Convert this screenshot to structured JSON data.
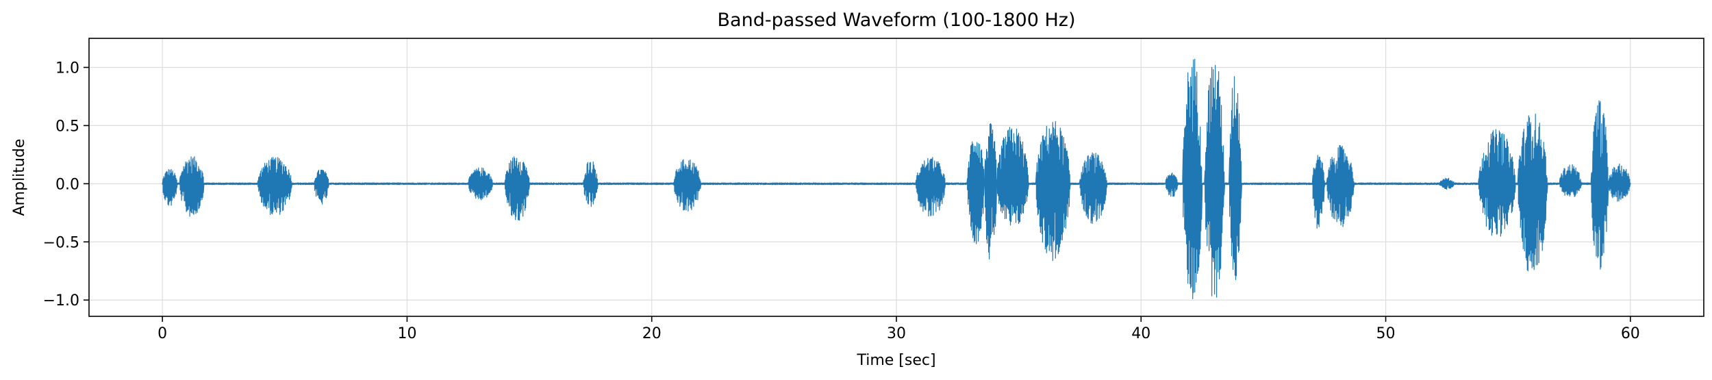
{
  "chart_data": {
    "type": "line",
    "title": "Band-passed Waveform (100-1800 Hz)",
    "xlabel": "Time [sec]",
    "ylabel": "Amplitude",
    "xlim": [
      -3,
      63
    ],
    "ylim": [
      -1.14,
      1.25
    ],
    "x_ticks": [
      0,
      10,
      20,
      30,
      40,
      50,
      60
    ],
    "x_tick_labels": [
      "0",
      "10",
      "20",
      "30",
      "40",
      "50",
      "60"
    ],
    "y_ticks": [
      -1.0,
      -0.5,
      0.0,
      0.5,
      1.0
    ],
    "y_tick_labels": [
      "−1.0",
      "−0.5",
      "0.0",
      "0.5",
      "1.0"
    ],
    "grid": true,
    "legend": "none",
    "color": "#1f77b4",
    "duration_sec": 60,
    "baseline_noise": 0.008,
    "bursts": [
      {
        "start": 0.0,
        "end": 0.6,
        "pos": 0.13,
        "neg": 0.2
      },
      {
        "start": 0.7,
        "end": 1.7,
        "pos": 0.24,
        "neg": 0.29
      },
      {
        "start": 3.9,
        "end": 5.3,
        "pos": 0.23,
        "neg": 0.28
      },
      {
        "start": 6.2,
        "end": 6.8,
        "pos": 0.13,
        "neg": 0.18
      },
      {
        "start": 12.5,
        "end": 13.5,
        "pos": 0.14,
        "neg": 0.14
      },
      {
        "start": 14.0,
        "end": 15.0,
        "pos": 0.25,
        "neg": 0.33
      },
      {
        "start": 17.2,
        "end": 17.8,
        "pos": 0.21,
        "neg": 0.2
      },
      {
        "start": 20.9,
        "end": 22.0,
        "pos": 0.22,
        "neg": 0.25
      },
      {
        "start": 30.8,
        "end": 32.0,
        "pos": 0.23,
        "neg": 0.3
      },
      {
        "start": 32.9,
        "end": 33.6,
        "pos": 0.45,
        "neg": 0.52
      },
      {
        "start": 33.6,
        "end": 34.1,
        "pos": 0.52,
        "neg": 0.68
      },
      {
        "start": 34.1,
        "end": 35.4,
        "pos": 0.5,
        "neg": 0.39
      },
      {
        "start": 35.7,
        "end": 37.1,
        "pos": 0.55,
        "neg": 0.67
      },
      {
        "start": 37.5,
        "end": 38.6,
        "pos": 0.27,
        "neg": 0.35
      },
      {
        "start": 41.0,
        "end": 41.5,
        "pos": 0.1,
        "neg": 0.12
      },
      {
        "start": 41.7,
        "end": 42.5,
        "pos": 1.13,
        "neg": 1.02
      },
      {
        "start": 42.6,
        "end": 43.4,
        "pos": 1.1,
        "neg": 1.01
      },
      {
        "start": 43.6,
        "end": 44.1,
        "pos": 0.97,
        "neg": 0.84
      },
      {
        "start": 47.0,
        "end": 47.5,
        "pos": 0.25,
        "neg": 0.4
      },
      {
        "start": 47.6,
        "end": 48.7,
        "pos": 0.33,
        "neg": 0.38
      },
      {
        "start": 52.2,
        "end": 52.8,
        "pos": 0.05,
        "neg": 0.05
      },
      {
        "start": 53.8,
        "end": 55.3,
        "pos": 0.47,
        "neg": 0.47
      },
      {
        "start": 55.4,
        "end": 56.6,
        "pos": 0.62,
        "neg": 0.82
      },
      {
        "start": 57.1,
        "end": 58.0,
        "pos": 0.17,
        "neg": 0.12
      },
      {
        "start": 58.4,
        "end": 59.1,
        "pos": 0.73,
        "neg": 0.82
      },
      {
        "start": 59.1,
        "end": 60.0,
        "pos": 0.17,
        "neg": 0.16
      }
    ]
  }
}
